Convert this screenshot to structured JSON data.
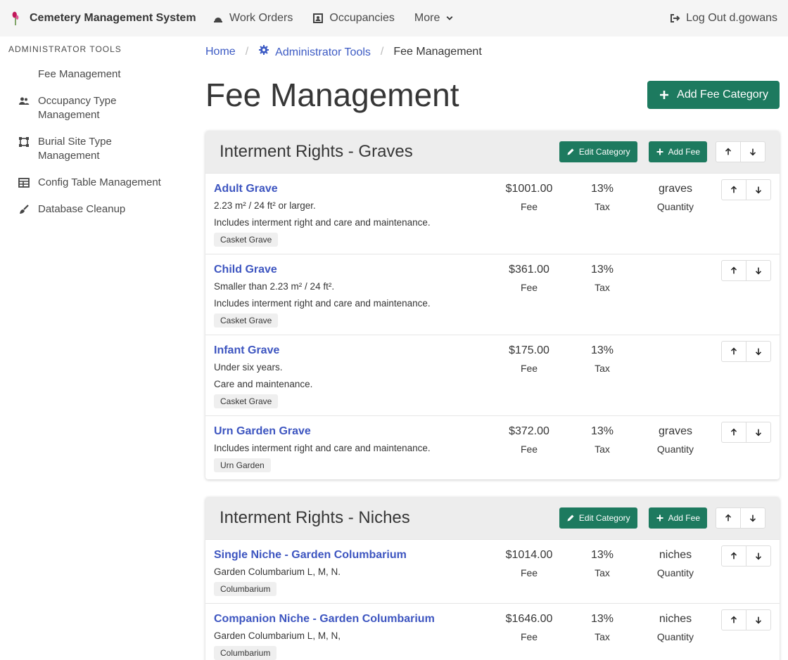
{
  "navbar": {
    "brand": "Cemetery Management System",
    "items": [
      "Work Orders",
      "Occupancies",
      "More"
    ],
    "logout": "Log Out d.gowans"
  },
  "sidebar": {
    "heading": "ADMINISTRATOR TOOLS",
    "items": [
      "Fee Management",
      "Occupancy Type Management",
      "Burial Site Type Management",
      "Config Table Management",
      "Database Cleanup"
    ]
  },
  "breadcrumb": [
    "Home",
    "Administrator Tools",
    "Fee Management"
  ],
  "page": {
    "title": "Fee Management",
    "add_button": "Add Fee Category"
  },
  "labels": {
    "edit_category": "Edit Category",
    "add_fee": "Add Fee",
    "fee": "Fee",
    "tax": "Tax",
    "quantity": "Quantity"
  },
  "categories": [
    {
      "name": "Interment Rights - Graves",
      "fees": [
        {
          "name": "Adult Grave",
          "description": [
            "2.23 m² / 24 ft² or larger.",
            "Includes interment right and care and maintenance."
          ],
          "amount": "$1001.00",
          "tax": "13%",
          "quantity": "graves",
          "tag": "Casket Grave"
        },
        {
          "name": "Child Grave",
          "description": [
            "Smaller than 2.23 m² / 24 ft².",
            "Includes interment right and care and maintenance."
          ],
          "amount": "$361.00",
          "tax": "13%",
          "tag": "Casket Grave"
        },
        {
          "name": "Infant Grave",
          "description": [
            "Under six years.",
            "Care and maintenance."
          ],
          "amount": "$175.00",
          "tax": "13%",
          "tag": "Casket Grave"
        },
        {
          "name": "Urn Garden Grave",
          "description": [
            "Includes interment right and care and maintenance."
          ],
          "amount": "$372.00",
          "tax": "13%",
          "quantity": "graves",
          "tag": "Urn Garden"
        }
      ]
    },
    {
      "name": "Interment Rights - Niches",
      "fees": [
        {
          "name": "Single Niche - Garden Columbarium",
          "description": [
            "Garden Columbarium L, M, N."
          ],
          "amount": "$1014.00",
          "tax": "13%",
          "quantity": "niches",
          "tag": "Columbarium"
        },
        {
          "name": "Companion Niche - Garden Columbarium",
          "description": [
            "Garden Columbarium L, M, N,"
          ],
          "amount": "$1646.00",
          "tax": "13%",
          "quantity": "niches",
          "tag": "Columbarium"
        }
      ]
    }
  ]
}
